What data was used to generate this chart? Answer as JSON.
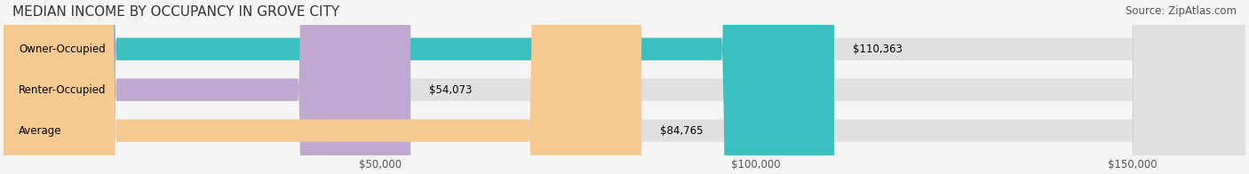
{
  "title": "MEDIAN INCOME BY OCCUPANCY IN GROVE CITY",
  "source": "Source: ZipAtlas.com",
  "categories": [
    "Owner-Occupied",
    "Renter-Occupied",
    "Average"
  ],
  "values": [
    110363,
    54073,
    84765
  ],
  "labels": [
    "$110,363",
    "$54,073",
    "$84,765"
  ],
  "bar_colors": [
    "#3bbfbf",
    "#c0a8d0",
    "#f5c990"
  ],
  "bar_bg_color": "#e8e8e8",
  "xlim": [
    0,
    165000
  ],
  "xticks": [
    0,
    50000,
    100000,
    150000
  ],
  "xtick_labels": [
    "$50,000",
    "$100,000",
    "$150,000"
  ],
  "title_fontsize": 11,
  "source_fontsize": 8.5,
  "label_fontsize": 8.5,
  "bar_height": 0.55,
  "background_color": "#f5f5f5",
  "bar_bg_alpha": 0.5
}
